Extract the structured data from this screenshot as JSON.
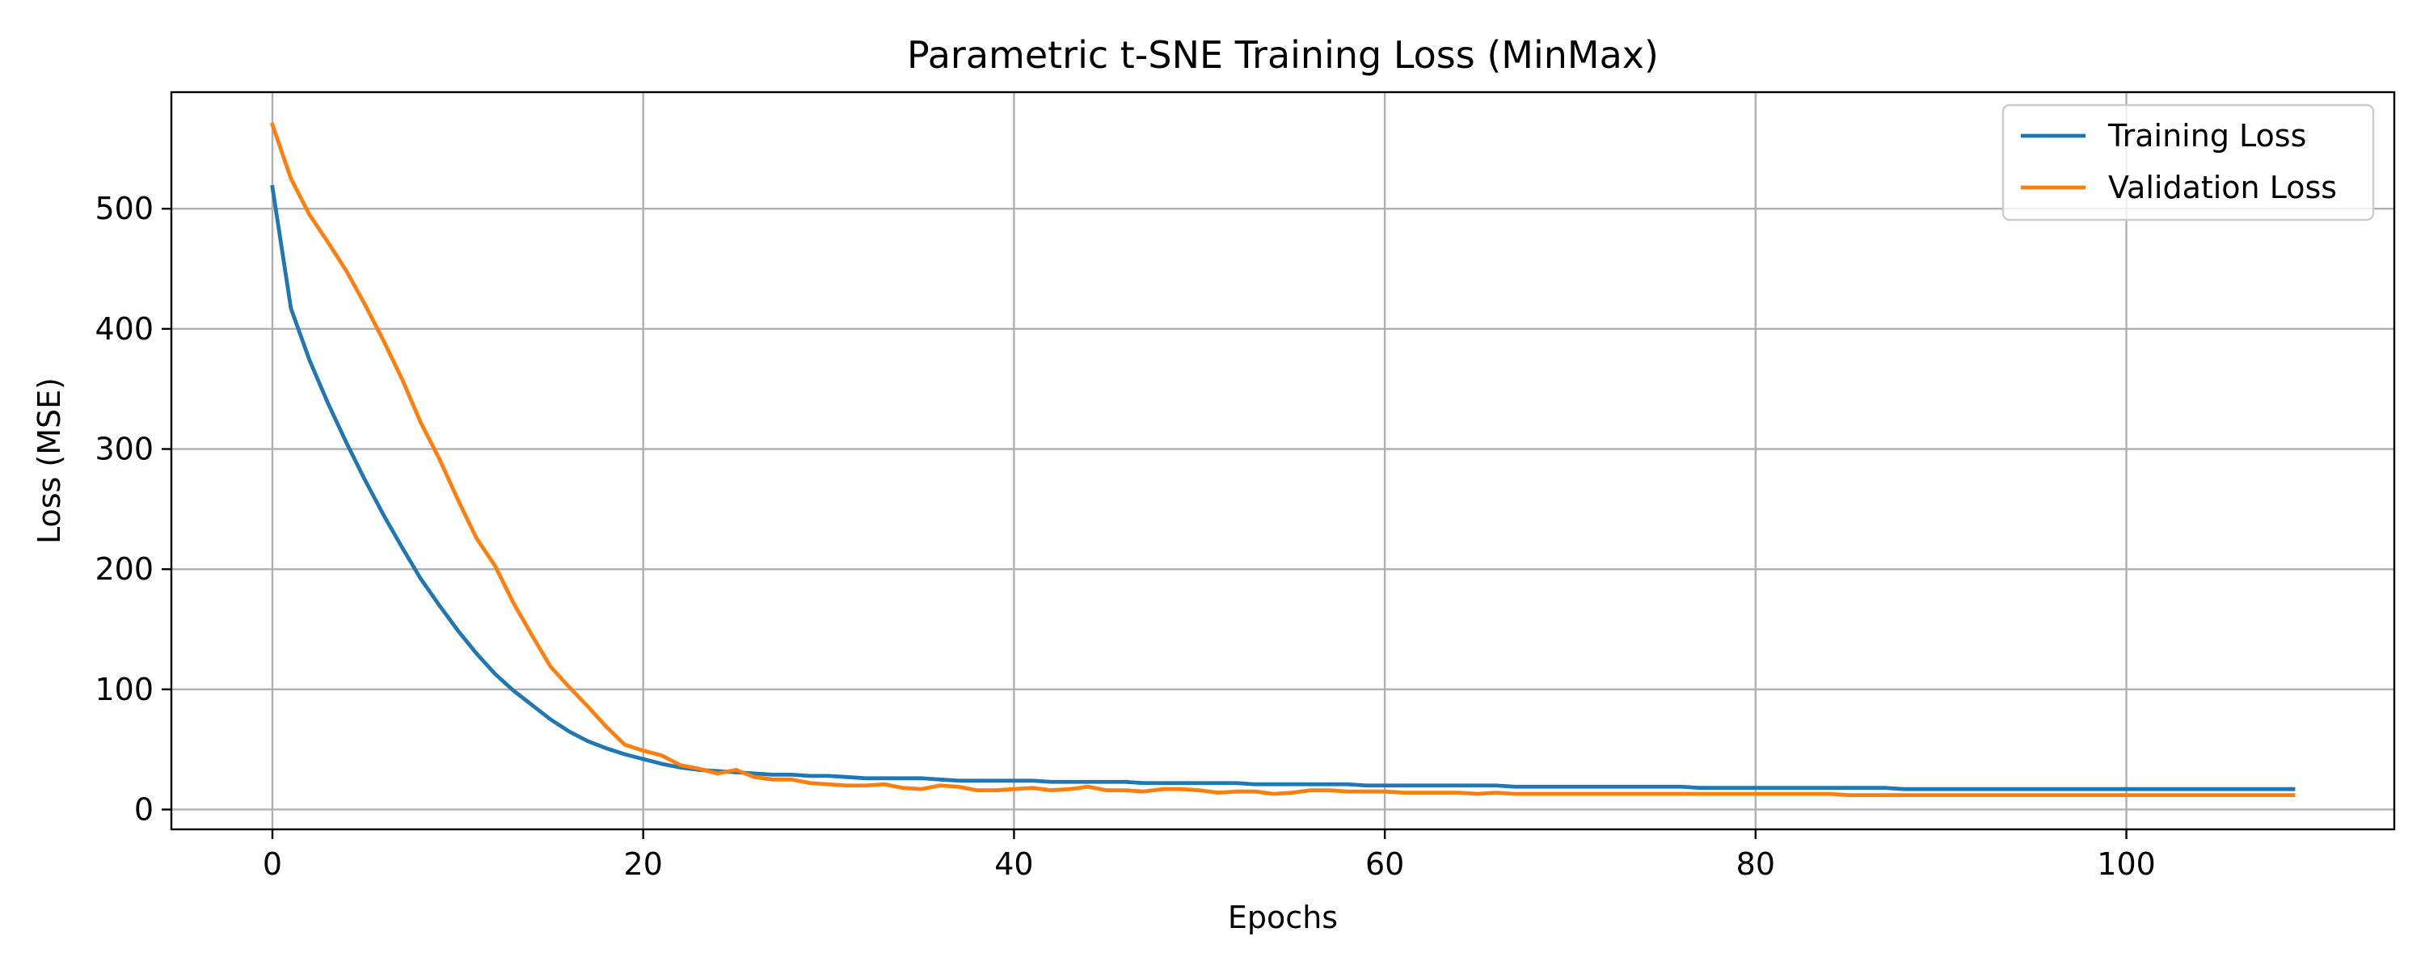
{
  "chart_data": {
    "type": "line",
    "title": "Parametric t-SNE Training Loss (MinMax)",
    "xlabel": "Epochs",
    "ylabel": "Loss (MSE)",
    "xlim": [
      -5.45,
      114.45
    ],
    "ylim": [
      -16.5,
      597.0
    ],
    "xticks": [
      0,
      20,
      40,
      60,
      80,
      100
    ],
    "yticks": [
      0,
      100,
      200,
      300,
      400,
      500
    ],
    "grid": true,
    "legend_position": "top-right",
    "x": [
      0,
      1,
      2,
      3,
      4,
      5,
      6,
      7,
      8,
      9,
      10,
      11,
      12,
      13,
      14,
      15,
      16,
      17,
      18,
      19,
      20,
      21,
      22,
      23,
      24,
      25,
      26,
      27,
      28,
      29,
      30,
      31,
      32,
      33,
      34,
      35,
      36,
      37,
      38,
      39,
      40,
      41,
      42,
      43,
      44,
      45,
      46,
      47,
      48,
      49,
      50,
      51,
      52,
      53,
      54,
      55,
      56,
      57,
      58,
      59,
      60,
      61,
      62,
      63,
      64,
      65,
      66,
      67,
      68,
      69,
      70,
      71,
      72,
      73,
      74,
      75,
      76,
      77,
      78,
      79,
      80,
      81,
      82,
      83,
      84,
      85,
      86,
      87,
      88,
      89,
      90,
      91,
      92,
      93,
      94,
      95,
      96,
      97,
      98,
      99,
      100,
      101,
      102,
      103,
      104,
      105,
      106,
      107,
      108,
      109
    ],
    "series": [
      {
        "name": "Training Loss",
        "color": "#1f77b4",
        "values": [
          518,
          417,
          374,
          338,
          305,
          274,
          245,
          218,
          192,
          170,
          149,
          130,
          113,
          99,
          87,
          75,
          65,
          57,
          51,
          46,
          42,
          38,
          35,
          33,
          32,
          31,
          30,
          29,
          29,
          28,
          28,
          27,
          26,
          26,
          26,
          26,
          25,
          24,
          24,
          24,
          24,
          24,
          23,
          23,
          23,
          23,
          23,
          22,
          22,
          22,
          22,
          22,
          22,
          21,
          21,
          21,
          21,
          21,
          21,
          20,
          20,
          20,
          20,
          20,
          20,
          20,
          20,
          19,
          19,
          19,
          19,
          19,
          19,
          19,
          19,
          19,
          19,
          18,
          18,
          18,
          18,
          18,
          18,
          18,
          18,
          18,
          18,
          18,
          17,
          17,
          17,
          17,
          17,
          17,
          17,
          17,
          17,
          17,
          17,
          17,
          17,
          17,
          17,
          17,
          17,
          17,
          17,
          17,
          17,
          17
        ]
      },
      {
        "name": "Validation Loss",
        "color": "#ff7f0e",
        "values": [
          570,
          525,
          495,
          472,
          448,
          420,
          390,
          358,
          322,
          292,
          258,
          226,
          203,
          172,
          145,
          119,
          102,
          86,
          69,
          54,
          49,
          45,
          37,
          34,
          30,
          33,
          27,
          25,
          25,
          22,
          21,
          20,
          20,
          21,
          18,
          17,
          20,
          19,
          16,
          16,
          17,
          18,
          16,
          17,
          19,
          16,
          16,
          15,
          17,
          17,
          16,
          14,
          15,
          15,
          13,
          14,
          16,
          16,
          15,
          15,
          15,
          14,
          14,
          14,
          14,
          13,
          14,
          13,
          13,
          13,
          13,
          13,
          13,
          13,
          13,
          13,
          13,
          13,
          13,
          13,
          13,
          13,
          13,
          13,
          13,
          12,
          12,
          12,
          12,
          12,
          12,
          12,
          12,
          12,
          12,
          12,
          12,
          12,
          12,
          12,
          12,
          12,
          12,
          12,
          12,
          12,
          12,
          12,
          12,
          12
        ]
      }
    ]
  }
}
